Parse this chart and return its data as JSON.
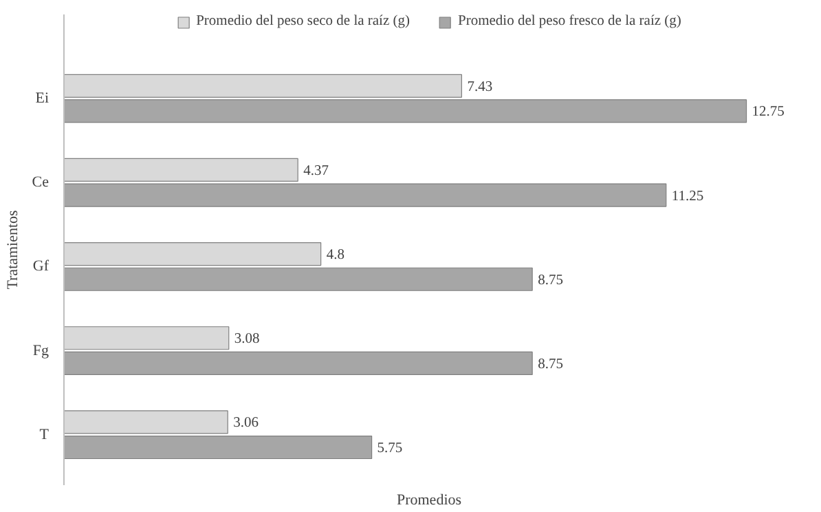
{
  "chart_data": {
    "type": "bar",
    "orientation": "horizontal",
    "xlabel": "Promedios",
    "ylabel": "Tratamientos",
    "categories": [
      "Ei",
      "Ce",
      "Gf",
      "Fg",
      "T"
    ],
    "series": [
      {
        "name": "Promedio del peso seco de la raíz (g)",
        "color": "#d9d9d9",
        "values": [
          7.43,
          4.37,
          4.8,
          3.08,
          3.06
        ]
      },
      {
        "name": "Promedio del peso fresco de la raíz (g)",
        "color": "#a6a6a6",
        "values": [
          12.75,
          11.25,
          8.75,
          8.75,
          5.75
        ]
      }
    ],
    "data_labels": true,
    "legend": "top",
    "grid": false
  }
}
